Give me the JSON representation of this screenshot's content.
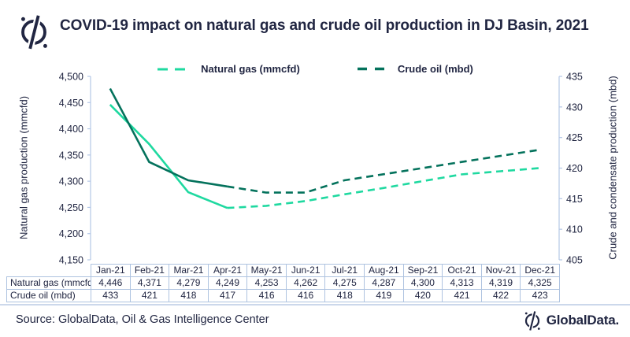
{
  "header": {
    "title": "COVID-19 impact on natural gas and crude oil production in DJ Basin, 2021"
  },
  "chart_data": {
    "type": "line",
    "categories": [
      "Jan-21",
      "Feb-21",
      "Mar-21",
      "Apr-21",
      "May-21",
      "Jun-21",
      "Jul-21",
      "Aug-21",
      "Sep-21",
      "Oct-21",
      "Nov-21",
      "Dec-21"
    ],
    "series": [
      {
        "name": "Natural gas (mmcfd)",
        "axis": "left",
        "color": "#1fd9a0",
        "values": [
          4446,
          4371,
          4279,
          4249,
          4253,
          4262,
          4275,
          4287,
          4300,
          4313,
          4319,
          4325
        ],
        "solid_until": "Apr-21"
      },
      {
        "name": "Crude oil (mbd)",
        "axis": "right",
        "color": "#04725c",
        "values": [
          433,
          421,
          418,
          417,
          416,
          416,
          418,
          419,
          420,
          421,
          422,
          423
        ],
        "solid_until": "Apr-21"
      }
    ],
    "left_axis": {
      "label": "Natural gas production (mmcfd)",
      "min": 4150,
      "max": 4500,
      "step": 50,
      "ticks": [
        "4,500",
        "4,450",
        "4,400",
        "4,350",
        "4,300",
        "4,250",
        "4,200",
        "4,150"
      ]
    },
    "right_axis": {
      "label": "Crude and condensate production (mbd)",
      "min": 405,
      "max": 435,
      "step": 5,
      "ticks": [
        "435",
        "430",
        "425",
        "420",
        "415",
        "410",
        "405"
      ]
    },
    "grid": false,
    "legend_position": "top",
    "axis_color": "#b4c7e7",
    "text_color": "#212642"
  },
  "table": {
    "row_labels": [
      "Natural gas (mmcfd)",
      "Crude oil (mbd)"
    ],
    "columns": [
      "Jan-21",
      "Feb-21",
      "Mar-21",
      "Apr-21",
      "May-21",
      "Jun-21",
      "Jul-21",
      "Aug-21",
      "Sep-21",
      "Oct-21",
      "Nov-21",
      "Dec-21"
    ],
    "rows": [
      [
        "4,446",
        "4,371",
        "4,279",
        "4,249",
        "4,253",
        "4,262",
        "4,275",
        "4,287",
        "4,300",
        "4,313",
        "4,319",
        "4,325"
      ],
      [
        "433",
        "421",
        "418",
        "417",
        "416",
        "416",
        "418",
        "419",
        "420",
        "421",
        "422",
        "423"
      ]
    ]
  },
  "footer": {
    "source": "Source: GlobalData, Oil & Gas Intelligence Center",
    "brand": "GlobalData."
  }
}
